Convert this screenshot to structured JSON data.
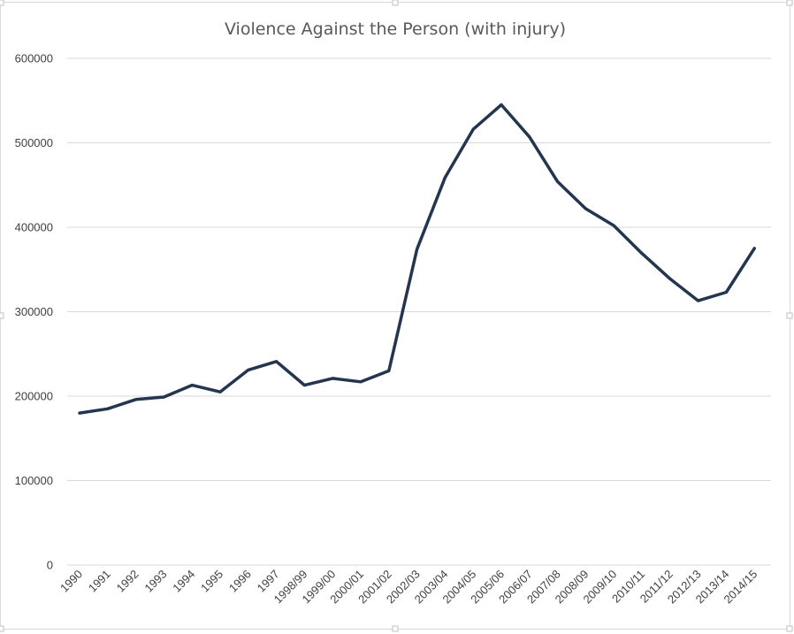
{
  "chart_data": {
    "type": "line",
    "title": "Violence Against the Person (with injury)",
    "xlabel": "",
    "ylabel": "",
    "ylim": [
      0,
      600000
    ],
    "yticks": [
      "0",
      "100000",
      "200000",
      "300000",
      "400000",
      "500000",
      "600000"
    ],
    "grid": true,
    "legend": "none",
    "categories": [
      "1990",
      "1991",
      "1992",
      "1993",
      "1994",
      "1995",
      "1996",
      "1997",
      "1998/99",
      "1999/00",
      "2000/01",
      "2001/02",
      "2002/03",
      "2003/04",
      "2004/05",
      "2005/06",
      "2006/07",
      "2007/08",
      "2008/09",
      "2009/10",
      "2010/11",
      "2011/12",
      "2012/13",
      "2013/14",
      "2014/15"
    ],
    "series": [
      {
        "color": "#243550",
        "values": [
          180000,
          185000,
          196000,
          199000,
          213000,
          205000,
          231000,
          241000,
          213000,
          221000,
          217000,
          230000,
          374000,
          459000,
          516000,
          545000,
          507000,
          454000,
          422000,
          402000,
          369000,
          339000,
          313000,
          323000,
          375000
        ]
      }
    ]
  }
}
